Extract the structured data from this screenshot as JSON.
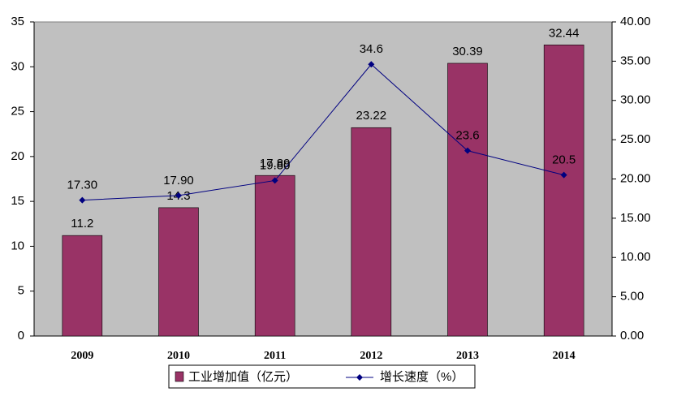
{
  "chart_data": {
    "type": "bar",
    "categories": [
      "2009",
      "2010",
      "2011",
      "2012",
      "2013",
      "2014"
    ],
    "series": [
      {
        "name": "工业增加值（亿元）",
        "type": "bar",
        "color": "#993366",
        "values": [
          11.2,
          14.3,
          17.89,
          23.22,
          30.39,
          32.44
        ]
      },
      {
        "name": "增长速度（%）",
        "type": "line",
        "axis": "y2",
        "color": "#000080",
        "values": [
          17.3,
          17.9,
          19.8,
          34.6,
          23.6,
          20.5
        ],
        "value_labels": [
          "17.30",
          "17.90",
          "19.80",
          "34.6",
          "23.6",
          "20.5"
        ]
      }
    ],
    "ylim": [
      0,
      35
    ],
    "yticks": [
      0,
      5,
      10,
      15,
      20,
      25,
      30,
      35
    ],
    "y2lim": [
      0,
      40
    ],
    "y2ticks": [
      {
        "value": 0,
        "label": "0.00"
      },
      {
        "value": 5,
        "label": "5.00"
      },
      {
        "value": 10,
        "label": "10.00"
      },
      {
        "value": 15,
        "label": "15.00"
      },
      {
        "value": 20,
        "label": "20.00"
      },
      {
        "value": 25,
        "label": "25.00"
      },
      {
        "value": 30,
        "label": "30.00"
      },
      {
        "value": 35,
        "label": "35.00"
      },
      {
        "value": 40,
        "label": "40.00"
      }
    ],
    "legend": "bottom"
  }
}
